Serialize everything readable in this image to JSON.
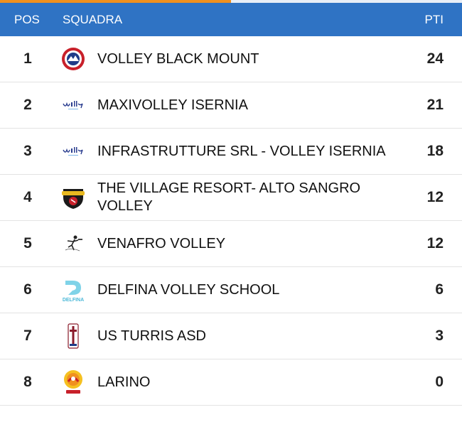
{
  "header": {
    "pos_label": "POS",
    "team_label": "SQUADRA",
    "points_label": "PTI"
  },
  "progress": {
    "fraction": 0.5
  },
  "colors": {
    "header_bg": "#2f73c4",
    "progress_accent": "#f0901e"
  },
  "standings": [
    {
      "pos": "1",
      "team": "VOLLEY BLACK MOUNT",
      "points": "24",
      "logo": "volley-black-mount-logo"
    },
    {
      "pos": "2",
      "team": "MAXIVOLLEY ISERNIA",
      "points": "21",
      "logo": "volley-isernia-logo"
    },
    {
      "pos": "3",
      "team": "INFRASTRUTTURE SRL - VOLLEY ISERNIA",
      "points": "18",
      "logo": "volley-isernia-logo"
    },
    {
      "pos": "4",
      "team": "THE VILLAGE RESORT- ALTO SANGRO VOLLEY",
      "points": "12",
      "logo": "alto-sangro-logo"
    },
    {
      "pos": "5",
      "team": "VENAFRO VOLLEY",
      "points": "12",
      "logo": "venafro-logo"
    },
    {
      "pos": "6",
      "team": "DELFINA VOLLEY SCHOOL",
      "points": "6",
      "logo": "delfina-logo"
    },
    {
      "pos": "7",
      "team": "US TURRIS ASD",
      "points": "3",
      "logo": "us-turris-logo"
    },
    {
      "pos": "8",
      "team": "LARINO",
      "points": "0",
      "logo": "larino-logo"
    }
  ]
}
